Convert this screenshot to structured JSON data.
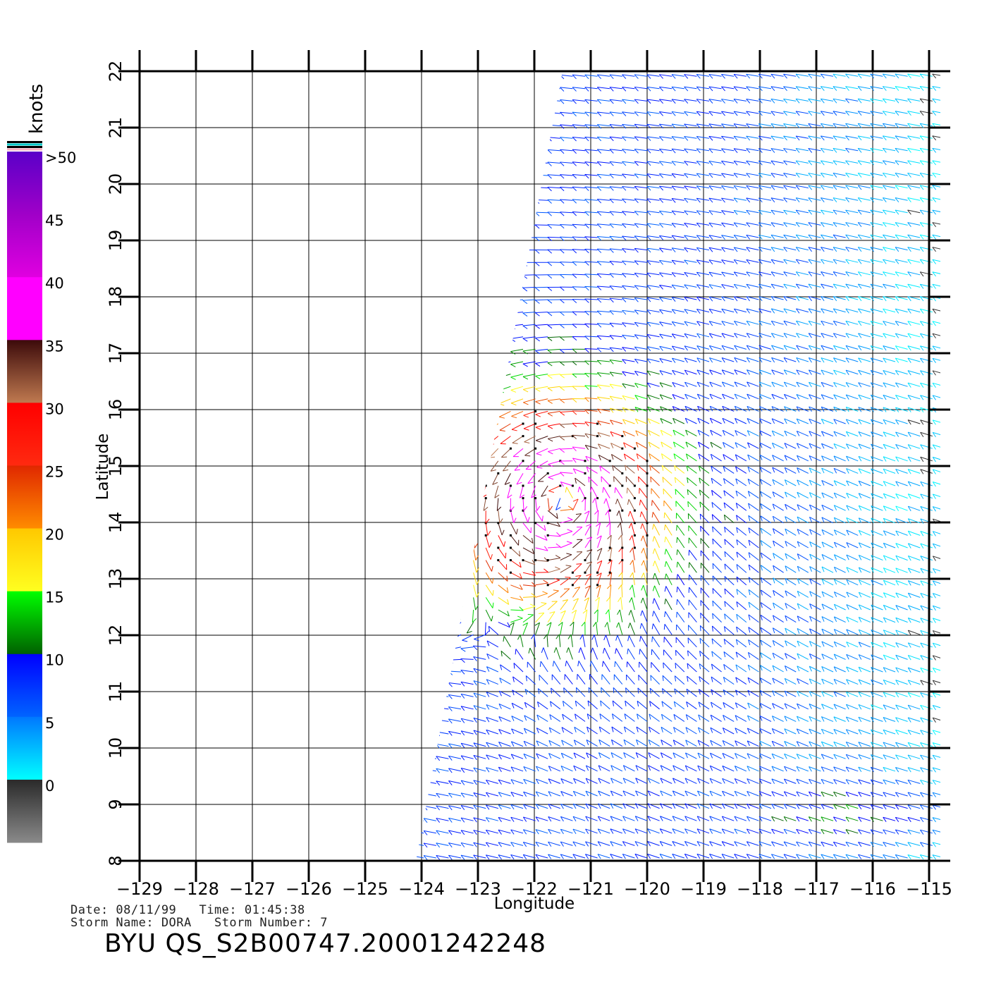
{
  "map": {
    "xlabel": "Longitude",
    "ylabel": "Latitude",
    "lon_ticks": [
      "−129",
      "−128",
      "−127",
      "−126",
      "−125",
      "−124",
      "−123",
      "−122",
      "−121",
      "−120",
      "−119",
      "−118",
      "−117",
      "−116",
      "−115"
    ],
    "lon_values": [
      -129,
      -128,
      -127,
      -126,
      -125,
      -124,
      -123,
      -122,
      -121,
      -120,
      -119,
      -118,
      -117,
      -116,
      -115
    ],
    "lat_ticks": [
      "8",
      "9",
      "10",
      "11",
      "12",
      "13",
      "14",
      "15",
      "16",
      "17",
      "18",
      "19",
      "20",
      "21",
      "22"
    ],
    "lat_values": [
      8,
      9,
      10,
      11,
      12,
      13,
      14,
      15,
      16,
      17,
      18,
      19,
      20,
      21,
      22
    ],
    "lon_range": [
      -129,
      -115
    ],
    "lat_range": [
      8,
      22
    ],
    "grid": true,
    "swath_corners": [
      [
        -124.1,
        8
      ],
      [
        -114.8,
        8
      ],
      [
        -114.8,
        22
      ],
      [
        -121.5,
        22
      ]
    ],
    "storm_center": {
      "lon": -121.5,
      "lat": 14.4
    }
  },
  "legend": {
    "unit": "knots",
    "labels": [
      ">50",
      "45",
      "40",
      "35",
      "30",
      "25",
      "20",
      "15",
      "10",
      "5",
      "0"
    ],
    "bands": [
      {
        "from": 50,
        "to": 55,
        "colors": [
          "#5a00c8",
          "#a000c8"
        ]
      },
      {
        "from": 45,
        "to": 50,
        "colors": [
          "#a000c8",
          "#e000e0"
        ]
      },
      {
        "from": 40,
        "to": 45,
        "colors": [
          "#ff00ff",
          "#ff00ff"
        ]
      },
      {
        "from": 35,
        "to": 40,
        "colors": [
          "#3c0a0a",
          "#c07a50"
        ]
      },
      {
        "from": 30,
        "to": 35,
        "colors": [
          "#ff0000",
          "#ff2a10"
        ]
      },
      {
        "from": 25,
        "to": 30,
        "colors": [
          "#e02800",
          "#ff8c00"
        ]
      },
      {
        "from": 20,
        "to": 25,
        "colors": [
          "#ffc800",
          "#ffff20"
        ]
      },
      {
        "from": 15,
        "to": 20,
        "colors": [
          "#00ff00",
          "#006000"
        ]
      },
      {
        "from": 10,
        "to": 15,
        "colors": [
          "#0000ff",
          "#0064ff"
        ]
      },
      {
        "from": 5,
        "to": 10,
        "colors": [
          "#0078ff",
          "#00ffff"
        ]
      },
      {
        "from": 0,
        "to": 5,
        "colors": [
          "#2a2a2a",
          "#8a8a8a"
        ]
      }
    ]
  },
  "info": {
    "line1": "Date: 08/11/99   Time: 01:45:38",
    "line2": "Storm Name: DORA   Storm Number: 7",
    "product": "BYU QS_S2B00747.20001242248"
  }
}
